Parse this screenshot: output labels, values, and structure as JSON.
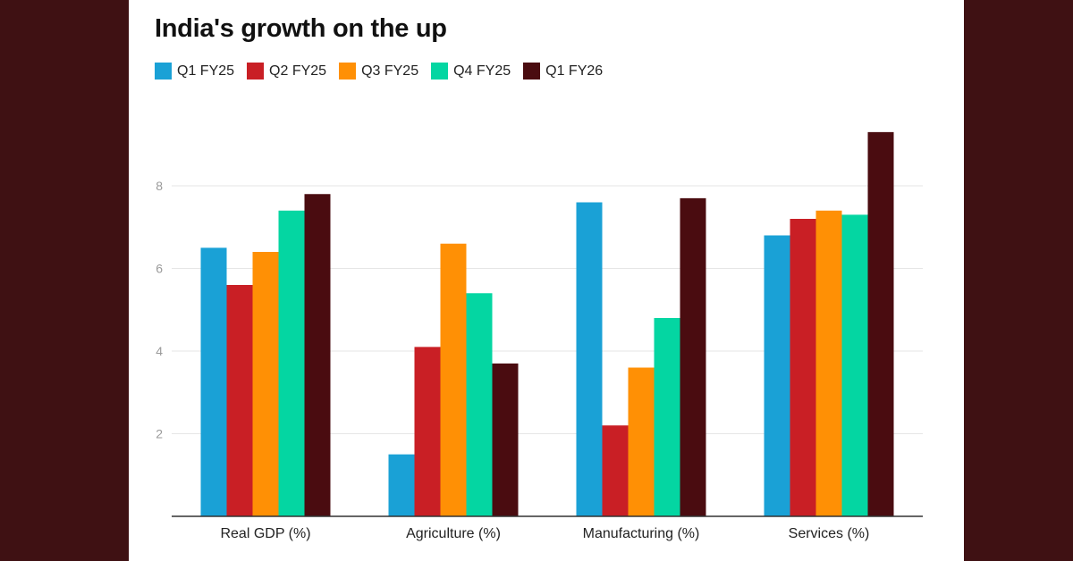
{
  "chart_data": {
    "type": "bar",
    "title": "India's growth on the up",
    "xlabel": "",
    "ylabel": "",
    "categories": [
      "Real GDP (%)",
      "Agriculture (%)",
      "Manufacturing (%)",
      "Services (%)"
    ],
    "series": [
      {
        "name": "Q1 FY25",
        "color": "#1aa1d6",
        "values": [
          6.5,
          1.5,
          7.6,
          6.8
        ]
      },
      {
        "name": "Q2 FY25",
        "color": "#c91f25",
        "values": [
          5.6,
          4.1,
          2.2,
          7.2
        ]
      },
      {
        "name": "Q3 FY25",
        "color": "#ff9005",
        "values": [
          6.4,
          6.6,
          3.6,
          7.4
        ]
      },
      {
        "name": "Q4 FY25",
        "color": "#04d6a2",
        "values": [
          7.4,
          5.4,
          4.8,
          7.3
        ]
      },
      {
        "name": "Q1 FY26",
        "color": "#4a0c10",
        "values": [
          7.8,
          3.7,
          7.7,
          9.3
        ]
      }
    ],
    "yticks": [
      2,
      4,
      6,
      8
    ],
    "ylim": [
      0,
      10
    ],
    "grid": true,
    "legend_position": "top-left"
  }
}
